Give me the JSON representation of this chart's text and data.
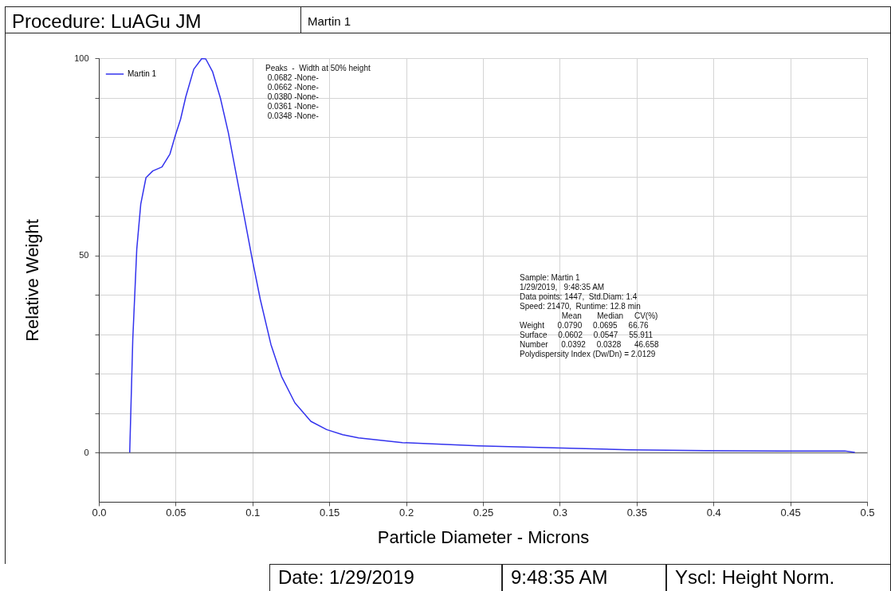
{
  "chart_data": {
    "type": "line",
    "title": "Procedure: LuAGu JM",
    "subtitle": "Martin 1",
    "xlabel": "Particle Diameter  -  Microns",
    "ylabel": "Relative Weight",
    "annotations": [
      "Peaks  -  Width at 50% height",
      " 0.0682 -None-",
      " 0.0662 -None-",
      " 0.0380 -None-",
      " 0.0361 -None-",
      " 0.0348 -None-",
      "Sample: Martin 1",
      "1/29/2019,   9:48:35 AM",
      "Data points: 1447,  Std.Diam: 1.4",
      "Speed: 21470,  Runtime: 12.8 min",
      "                   Mean       Median     CV(%)",
      "Weight      0.0790     0.0695     66.76",
      "Surface     0.0602     0.0547     55.911",
      "Number      0.0392     0.0328      46.658",
      "Polydispersity Index (Dw/Dn) = 2.0129",
      "Date: 1/29/2019",
      "9:48:35 AM",
      "Yscl: Height Norm."
    ],
    "series": [
      {
        "name": "Martin 1",
        "color": "#3333ee",
        "x": [
          0.0201,
          0.0221,
          0.0247,
          0.0273,
          0.0307,
          0.0351,
          0.0411,
          0.0463,
          0.0498,
          0.0532,
          0.0566,
          0.0618,
          0.067,
          0.0696,
          0.074,
          0.0791,
          0.0843,
          0.0895,
          0.0947,
          0.0999,
          0.1051,
          0.112,
          0.1189,
          0.1276,
          0.138,
          0.1483,
          0.1587,
          0.169,
          0.1976,
          0.2469,
          0.2962,
          0.3454,
          0.3947,
          0.444,
          0.4855,
          0.492
        ],
        "values": [
          0,
          28.7,
          51.6,
          63,
          69.7,
          71.4,
          72.4,
          75.7,
          80.4,
          84.5,
          90.2,
          97.2,
          99.9,
          99.8,
          96.6,
          89.9,
          81.1,
          70.4,
          59.7,
          48.9,
          38.8,
          27.4,
          19.3,
          12.6,
          7.9,
          5.8,
          4.5,
          3.7,
          2.5,
          1.7,
          1.2,
          0.7,
          0.5,
          0.4,
          0.4,
          0
        ]
      }
    ],
    "xlim": [
      0,
      0.5
    ],
    "xticks": [
      {
        "value": 0,
        "label": "0.0"
      },
      0.05,
      0.1,
      0.15,
      0.2,
      0.25,
      0.3,
      0.35,
      0.4,
      0.45,
      0.5
    ],
    "ylim": [
      -12.5,
      100
    ],
    "yticks": [
      0,
      {
        "value": 10,
        "label": null
      },
      {
        "value": 20,
        "label": null
      },
      {
        "value": 30,
        "label": null
      },
      {
        "value": 40,
        "label": null
      },
      50,
      {
        "value": 60,
        "label": null
      },
      {
        "value": 70,
        "label": null
      },
      {
        "value": 80,
        "label": null
      },
      {
        "value": 90,
        "label": null
      },
      100
    ],
    "grid": true,
    "legend": "top left",
    "marker": "none",
    "line_style": "solid"
  }
}
